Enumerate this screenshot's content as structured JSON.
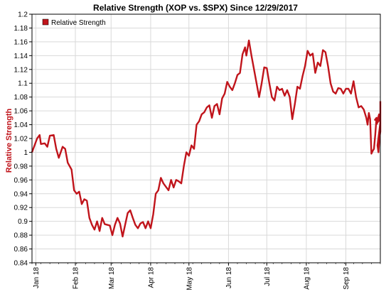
{
  "chart_data": {
    "type": "line",
    "title": "Relative Strength (XOP vs. $SPX) Since 12/29/2017",
    "xlabel": "",
    "ylabel": "Relative Strength",
    "ylim": [
      0.84,
      1.2
    ],
    "yticks": [
      "0.84",
      "0.86",
      "0.88",
      "0.9",
      "0.92",
      "0.94",
      "0.96",
      "0.98",
      "1",
      "1.02",
      "1.04",
      "1.06",
      "1.08",
      "1.1",
      "1.12",
      "1.14",
      "1.16",
      "1.18",
      "1.2"
    ],
    "xticks": [
      {
        "label": "Jan 18",
        "date": "2018-01-01"
      },
      {
        "label": "Feb 18",
        "date": "2018-02-01"
      },
      {
        "label": "Mar 18",
        "date": "2018-03-01"
      },
      {
        "label": "Apr 18",
        "date": "2018-04-01"
      },
      {
        "label": "May 18",
        "date": "2018-05-01"
      },
      {
        "label": "Jun 18",
        "date": "2018-06-01"
      },
      {
        "label": "Jul 18",
        "date": "2018-07-01"
      },
      {
        "label": "Aug 18",
        "date": "2018-08-01"
      },
      {
        "label": "Sep 18",
        "date": "2018-09-01"
      }
    ],
    "xlim": [
      "2017-12-29",
      "2018-09-28"
    ],
    "grid": true,
    "legend": "top-left",
    "series": [
      {
        "name": "Relative Strength",
        "color": "#c0141b",
        "points": [
          [
            "2017-12-29",
            1.0
          ],
          [
            "2018-01-02",
            1.02
          ],
          [
            "2018-01-04",
            1.025
          ],
          [
            "2018-01-05",
            1.012
          ],
          [
            "2018-01-08",
            1.013
          ],
          [
            "2018-01-10",
            1.008
          ],
          [
            "2018-01-12",
            1.024
          ],
          [
            "2018-01-15",
            1.025
          ],
          [
            "2018-01-17",
            1.005
          ],
          [
            "2018-01-19",
            0.992
          ],
          [
            "2018-01-22",
            1.008
          ],
          [
            "2018-01-24",
            1.005
          ],
          [
            "2018-01-26",
            0.985
          ],
          [
            "2018-01-29",
            0.975
          ],
          [
            "2018-01-31",
            0.945
          ],
          [
            "2018-02-02",
            0.94
          ],
          [
            "2018-02-04",
            0.943
          ],
          [
            "2018-02-06",
            0.925
          ],
          [
            "2018-02-08",
            0.932
          ],
          [
            "2018-02-10",
            0.93
          ],
          [
            "2018-02-12",
            0.905
          ],
          [
            "2018-02-14",
            0.895
          ],
          [
            "2018-02-16",
            0.888
          ],
          [
            "2018-02-18",
            0.9
          ],
          [
            "2018-02-20",
            0.886
          ],
          [
            "2018-02-22",
            0.905
          ],
          [
            "2018-02-24",
            0.896
          ],
          [
            "2018-02-26",
            0.895
          ],
          [
            "2018-02-28",
            0.894
          ],
          [
            "2018-03-02",
            0.88
          ],
          [
            "2018-03-04",
            0.895
          ],
          [
            "2018-03-06",
            0.905
          ],
          [
            "2018-03-08",
            0.897
          ],
          [
            "2018-03-10",
            0.878
          ],
          [
            "2018-03-12",
            0.895
          ],
          [
            "2018-03-14",
            0.912
          ],
          [
            "2018-03-16",
            0.916
          ],
          [
            "2018-03-18",
            0.905
          ],
          [
            "2018-03-20",
            0.895
          ],
          [
            "2018-03-22",
            0.89
          ],
          [
            "2018-03-24",
            0.897
          ],
          [
            "2018-03-26",
            0.899
          ],
          [
            "2018-03-28",
            0.89
          ],
          [
            "2018-03-30",
            0.9
          ],
          [
            "2018-04-01",
            0.89
          ],
          [
            "2018-04-03",
            0.91
          ],
          [
            "2018-04-05",
            0.94
          ],
          [
            "2018-04-07",
            0.945
          ],
          [
            "2018-04-09",
            0.963
          ],
          [
            "2018-04-11",
            0.955
          ],
          [
            "2018-04-13",
            0.95
          ],
          [
            "2018-04-15",
            0.945
          ],
          [
            "2018-04-17",
            0.96
          ],
          [
            "2018-04-19",
            0.949
          ],
          [
            "2018-04-21",
            0.96
          ],
          [
            "2018-04-23",
            0.958
          ],
          [
            "2018-04-25",
            0.955
          ],
          [
            "2018-04-27",
            0.98
          ],
          [
            "2018-04-29",
            1.0
          ],
          [
            "2018-05-01",
            0.995
          ],
          [
            "2018-05-03",
            1.01
          ],
          [
            "2018-05-05",
            1.005
          ],
          [
            "2018-05-07",
            1.04
          ],
          [
            "2018-05-09",
            1.045
          ],
          [
            "2018-05-11",
            1.055
          ],
          [
            "2018-05-13",
            1.058
          ],
          [
            "2018-05-15",
            1.065
          ],
          [
            "2018-05-17",
            1.068
          ],
          [
            "2018-05-19",
            1.05
          ],
          [
            "2018-05-21",
            1.067
          ],
          [
            "2018-05-23",
            1.07
          ],
          [
            "2018-05-25",
            1.055
          ],
          [
            "2018-05-27",
            1.078
          ],
          [
            "2018-05-29",
            1.085
          ],
          [
            "2018-05-31",
            1.102
          ],
          [
            "2018-06-02",
            1.095
          ],
          [
            "2018-06-04",
            1.09
          ],
          [
            "2018-06-06",
            1.1
          ],
          [
            "2018-06-08",
            1.112
          ],
          [
            "2018-06-10",
            1.115
          ],
          [
            "2018-06-12",
            1.142
          ],
          [
            "2018-06-14",
            1.152
          ],
          [
            "2018-06-15",
            1.14
          ],
          [
            "2018-06-17",
            1.162
          ],
          [
            "2018-06-19",
            1.14
          ],
          [
            "2018-06-21",
            1.12
          ],
          [
            "2018-06-23",
            1.1
          ],
          [
            "2018-06-25",
            1.08
          ],
          [
            "2018-06-27",
            1.1
          ],
          [
            "2018-06-29",
            1.123
          ],
          [
            "2018-07-01",
            1.122
          ],
          [
            "2018-07-03",
            1.1
          ],
          [
            "2018-07-05",
            1.08
          ],
          [
            "2018-07-07",
            1.075
          ],
          [
            "2018-07-09",
            1.095
          ],
          [
            "2018-07-11",
            1.09
          ],
          [
            "2018-07-13",
            1.092
          ],
          [
            "2018-07-15",
            1.082
          ],
          [
            "2018-07-17",
            1.09
          ],
          [
            "2018-07-19",
            1.08
          ],
          [
            "2018-07-21",
            1.048
          ],
          [
            "2018-07-23",
            1.07
          ],
          [
            "2018-07-25",
            1.095
          ],
          [
            "2018-07-27",
            1.092
          ],
          [
            "2018-07-29",
            1.11
          ],
          [
            "2018-07-31",
            1.125
          ],
          [
            "2018-08-02",
            1.147
          ],
          [
            "2018-08-04",
            1.14
          ],
          [
            "2018-08-06",
            1.143
          ],
          [
            "2018-08-08",
            1.115
          ],
          [
            "2018-08-10",
            1.13
          ],
          [
            "2018-08-12",
            1.125
          ],
          [
            "2018-08-14",
            1.148
          ],
          [
            "2018-08-16",
            1.145
          ],
          [
            "2018-08-18",
            1.125
          ],
          [
            "2018-08-20",
            1.1
          ],
          [
            "2018-08-22",
            1.088
          ],
          [
            "2018-08-24",
            1.085
          ],
          [
            "2018-08-26",
            1.093
          ],
          [
            "2018-08-28",
            1.092
          ],
          [
            "2018-08-30",
            1.085
          ],
          [
            "2018-09-01",
            1.092
          ],
          [
            "2018-09-03",
            1.092
          ],
          [
            "2018-09-05",
            1.085
          ],
          [
            "2018-09-07",
            1.103
          ],
          [
            "2018-09-09",
            1.08
          ],
          [
            "2018-09-11",
            1.065
          ],
          [
            "2018-09-13",
            1.067
          ],
          [
            "2018-09-15",
            1.062
          ],
          [
            "2018-09-17",
            1.05
          ],
          [
            "2018-09-18",
            1.04
          ],
          [
            "2018-09-19",
            1.057
          ],
          [
            "2018-09-20",
            1.048
          ],
          [
            "2018-09-21",
            0.998
          ],
          [
            "2018-09-22",
            1.002
          ],
          [
            "2018-09-23",
            1.005
          ],
          [
            "2018-09-24",
            1.025
          ],
          [
            "2018-09-25",
            1.05
          ],
          [
            "2018-09-26",
            1.047
          ],
          [
            "2018-09-26",
            1.05
          ],
          [
            "2018-09-27",
            1.04
          ],
          [
            "2018-09-27",
            1.055
          ],
          [
            "2018-09-27",
            1.043
          ],
          [
            "2018-09-28",
            1.01
          ],
          [
            "2018-09-28",
            1.0
          ],
          [
            "2018-09-28",
            1.02
          ],
          [
            "2018-09-28",
            1.03
          ],
          [
            "2018-09-28",
            1.047
          ],
          [
            "2018-09-28",
            1.07
          ],
          [
            "2018-09-28",
            1.074
          ]
        ]
      }
    ]
  }
}
